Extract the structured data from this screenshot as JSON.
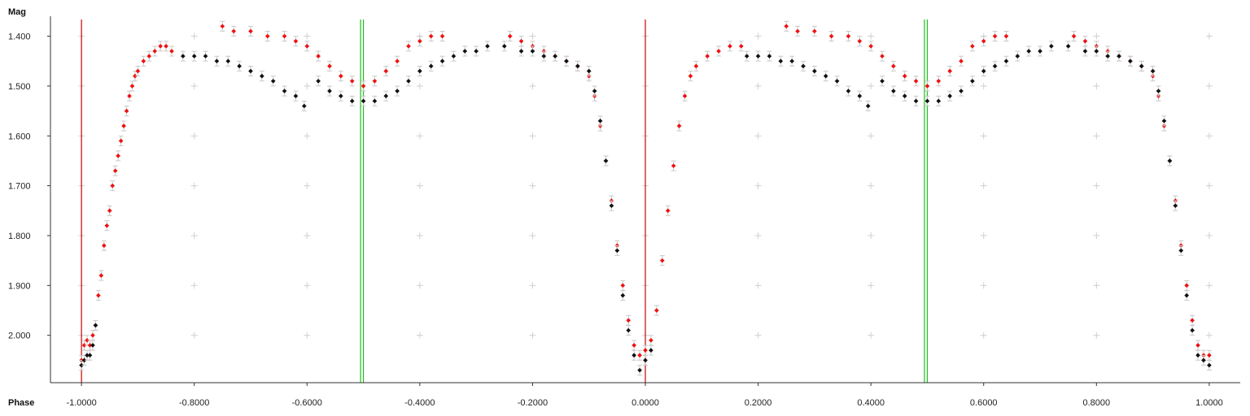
{
  "chart_data": {
    "type": "scatter",
    "title": "",
    "xlabel": "Phase",
    "ylabel": "Mag",
    "xlim": [
      -1.055,
      1.055
    ],
    "ylim": [
      2.095,
      1.36
    ],
    "y_inverted": true,
    "x_ticks": [
      -1.0,
      -0.8,
      -0.6,
      -0.4,
      -0.2,
      0.0,
      0.2,
      0.4,
      0.6,
      0.8,
      1.0
    ],
    "x_tick_labels": [
      "-1.0000",
      "-0.8000",
      "-0.6000",
      "-0.4000",
      "-0.2000",
      "0.0000",
      "0.2000",
      "0.4000",
      "0.6000",
      "0.8000",
      "1.0000"
    ],
    "y_ticks": [
      1.4,
      1.5,
      1.6,
      1.7,
      1.8,
      1.9,
      2.0
    ],
    "y_tick_labels": [
      "1.400",
      "1.500",
      "1.600",
      "1.700",
      "1.800",
      "1.900",
      "2.000"
    ],
    "grid": "plus-markers",
    "vertical_lines": [
      {
        "x": -1.0,
        "color": "#cc0000"
      },
      {
        "x": 0.0,
        "color": "#cc0000"
      },
      {
        "x": -0.505,
        "color": "#22bb22"
      },
      {
        "x": -0.5,
        "color": "#22bb22"
      },
      {
        "x": 0.495,
        "color": "#22bb22"
      },
      {
        "x": 0.5,
        "color": "#22bb22"
      }
    ],
    "series": [
      {
        "color": "#ee1111",
        "points": [
          [
            -1.0,
            2.05
          ],
          [
            -0.995,
            2.02
          ],
          [
            -0.99,
            2.01
          ],
          [
            -0.985,
            2.02
          ],
          [
            -0.98,
            2.0
          ],
          [
            -0.975,
            1.98
          ],
          [
            -0.97,
            1.92
          ],
          [
            -0.965,
            1.88
          ],
          [
            -0.96,
            1.82
          ],
          [
            -0.955,
            1.78
          ],
          [
            -0.95,
            1.75
          ],
          [
            -0.945,
            1.7
          ],
          [
            -0.94,
            1.67
          ],
          [
            -0.935,
            1.64
          ],
          [
            -0.93,
            1.61
          ],
          [
            -0.925,
            1.58
          ],
          [
            -0.92,
            1.55
          ],
          [
            -0.915,
            1.52
          ],
          [
            -0.91,
            1.5
          ],
          [
            -0.905,
            1.48
          ],
          [
            -0.9,
            1.47
          ],
          [
            -0.89,
            1.45
          ],
          [
            -0.88,
            1.44
          ],
          [
            -0.87,
            1.43
          ],
          [
            -0.86,
            1.42
          ],
          [
            -0.85,
            1.42
          ],
          [
            -0.84,
            1.43
          ],
          [
            -0.75,
            1.38
          ],
          [
            -0.73,
            1.39
          ],
          [
            -0.7,
            1.39
          ],
          [
            -0.67,
            1.4
          ],
          [
            -0.64,
            1.4
          ],
          [
            -0.62,
            1.41
          ],
          [
            -0.6,
            1.42
          ],
          [
            -0.58,
            1.44
          ],
          [
            -0.56,
            1.46
          ],
          [
            -0.54,
            1.48
          ],
          [
            -0.52,
            1.49
          ],
          [
            -0.5,
            1.5
          ],
          [
            -0.48,
            1.49
          ],
          [
            -0.46,
            1.47
          ],
          [
            -0.44,
            1.45
          ],
          [
            -0.42,
            1.42
          ],
          [
            -0.4,
            1.41
          ],
          [
            -0.38,
            1.4
          ],
          [
            -0.36,
            1.4
          ],
          [
            -0.24,
            1.4
          ],
          [
            -0.22,
            1.41
          ],
          [
            -0.2,
            1.42
          ],
          [
            -0.18,
            1.43
          ],
          [
            -0.16,
            1.44
          ],
          [
            -0.14,
            1.45
          ],
          [
            -0.12,
            1.46
          ],
          [
            -0.1,
            1.48
          ],
          [
            -0.09,
            1.52
          ],
          [
            -0.08,
            1.58
          ],
          [
            -0.07,
            1.65
          ],
          [
            -0.06,
            1.73
          ],
          [
            -0.05,
            1.82
          ],
          [
            -0.04,
            1.9
          ],
          [
            -0.03,
            1.97
          ],
          [
            -0.02,
            2.02
          ],
          [
            -0.01,
            2.04
          ],
          [
            0.0,
            2.03
          ],
          [
            0.01,
            2.01
          ],
          [
            0.02,
            1.95
          ],
          [
            0.03,
            1.85
          ],
          [
            0.04,
            1.75
          ],
          [
            0.05,
            1.66
          ],
          [
            0.06,
            1.58
          ],
          [
            0.07,
            1.52
          ],
          [
            0.08,
            1.48
          ],
          [
            0.09,
            1.46
          ],
          [
            0.11,
            1.44
          ],
          [
            0.13,
            1.43
          ],
          [
            0.15,
            1.42
          ],
          [
            0.17,
            1.42
          ],
          [
            0.25,
            1.38
          ],
          [
            0.27,
            1.39
          ],
          [
            0.3,
            1.39
          ],
          [
            0.33,
            1.4
          ],
          [
            0.36,
            1.4
          ],
          [
            0.38,
            1.41
          ],
          [
            0.4,
            1.42
          ],
          [
            0.42,
            1.44
          ],
          [
            0.44,
            1.46
          ],
          [
            0.46,
            1.48
          ],
          [
            0.48,
            1.49
          ],
          [
            0.5,
            1.5
          ],
          [
            0.52,
            1.49
          ],
          [
            0.54,
            1.47
          ],
          [
            0.56,
            1.45
          ],
          [
            0.58,
            1.42
          ],
          [
            0.6,
            1.41
          ],
          [
            0.62,
            1.4
          ],
          [
            0.64,
            1.4
          ],
          [
            0.76,
            1.4
          ],
          [
            0.78,
            1.41
          ],
          [
            0.8,
            1.42
          ],
          [
            0.82,
            1.43
          ],
          [
            0.84,
            1.44
          ],
          [
            0.86,
            1.45
          ],
          [
            0.88,
            1.46
          ],
          [
            0.9,
            1.48
          ],
          [
            0.91,
            1.52
          ],
          [
            0.92,
            1.58
          ],
          [
            0.93,
            1.65
          ],
          [
            0.94,
            1.73
          ],
          [
            0.95,
            1.82
          ],
          [
            0.96,
            1.9
          ],
          [
            0.97,
            1.97
          ],
          [
            0.98,
            2.02
          ],
          [
            0.99,
            2.04
          ],
          [
            1.0,
            2.04
          ]
        ]
      },
      {
        "color": "#111111",
        "points": [
          [
            -1.0,
            2.06
          ],
          [
            -0.995,
            2.05
          ],
          [
            -0.99,
            2.04
          ],
          [
            -0.985,
            2.04
          ],
          [
            -0.98,
            2.02
          ],
          [
            -0.975,
            1.98
          ],
          [
            -0.82,
            1.44
          ],
          [
            -0.8,
            1.44
          ],
          [
            -0.78,
            1.44
          ],
          [
            -0.76,
            1.45
          ],
          [
            -0.74,
            1.45
          ],
          [
            -0.72,
            1.46
          ],
          [
            -0.7,
            1.47
          ],
          [
            -0.68,
            1.48
          ],
          [
            -0.66,
            1.49
          ],
          [
            -0.64,
            1.51
          ],
          [
            -0.62,
            1.52
          ],
          [
            -0.605,
            1.54
          ],
          [
            -0.58,
            1.49
          ],
          [
            -0.56,
            1.51
          ],
          [
            -0.54,
            1.52
          ],
          [
            -0.52,
            1.53
          ],
          [
            -0.5,
            1.53
          ],
          [
            -0.48,
            1.53
          ],
          [
            -0.46,
            1.52
          ],
          [
            -0.44,
            1.51
          ],
          [
            -0.42,
            1.49
          ],
          [
            -0.4,
            1.47
          ],
          [
            -0.38,
            1.46
          ],
          [
            -0.36,
            1.45
          ],
          [
            -0.34,
            1.44
          ],
          [
            -0.32,
            1.43
          ],
          [
            -0.3,
            1.43
          ],
          [
            -0.28,
            1.42
          ],
          [
            -0.25,
            1.42
          ],
          [
            -0.22,
            1.43
          ],
          [
            -0.2,
            1.43
          ],
          [
            -0.18,
            1.44
          ],
          [
            -0.16,
            1.44
          ],
          [
            -0.14,
            1.45
          ],
          [
            -0.12,
            1.46
          ],
          [
            -0.1,
            1.47
          ],
          [
            -0.09,
            1.51
          ],
          [
            -0.08,
            1.57
          ],
          [
            -0.07,
            1.65
          ],
          [
            -0.06,
            1.74
          ],
          [
            -0.05,
            1.83
          ],
          [
            -0.04,
            1.92
          ],
          [
            -0.03,
            1.99
          ],
          [
            -0.02,
            2.04
          ],
          [
            -0.01,
            2.07
          ],
          [
            0.0,
            2.05
          ],
          [
            0.01,
            2.03
          ],
          [
            0.18,
            1.44
          ],
          [
            0.2,
            1.44
          ],
          [
            0.22,
            1.44
          ],
          [
            0.24,
            1.45
          ],
          [
            0.26,
            1.45
          ],
          [
            0.28,
            1.46
          ],
          [
            0.3,
            1.47
          ],
          [
            0.32,
            1.48
          ],
          [
            0.34,
            1.49
          ],
          [
            0.36,
            1.51
          ],
          [
            0.38,
            1.52
          ],
          [
            0.395,
            1.54
          ],
          [
            0.42,
            1.49
          ],
          [
            0.44,
            1.51
          ],
          [
            0.46,
            1.52
          ],
          [
            0.48,
            1.53
          ],
          [
            0.5,
            1.53
          ],
          [
            0.52,
            1.53
          ],
          [
            0.54,
            1.52
          ],
          [
            0.56,
            1.51
          ],
          [
            0.58,
            1.49
          ],
          [
            0.6,
            1.47
          ],
          [
            0.62,
            1.46
          ],
          [
            0.64,
            1.45
          ],
          [
            0.66,
            1.44
          ],
          [
            0.68,
            1.43
          ],
          [
            0.7,
            1.43
          ],
          [
            0.72,
            1.42
          ],
          [
            0.75,
            1.42
          ],
          [
            0.78,
            1.43
          ],
          [
            0.8,
            1.43
          ],
          [
            0.82,
            1.44
          ],
          [
            0.84,
            1.44
          ],
          [
            0.86,
            1.45
          ],
          [
            0.88,
            1.46
          ],
          [
            0.9,
            1.47
          ],
          [
            0.91,
            1.51
          ],
          [
            0.92,
            1.57
          ],
          [
            0.93,
            1.65
          ],
          [
            0.94,
            1.74
          ],
          [
            0.95,
            1.83
          ],
          [
            0.96,
            1.92
          ],
          [
            0.97,
            1.99
          ],
          [
            0.98,
            2.04
          ],
          [
            0.99,
            2.05
          ],
          [
            1.0,
            2.06
          ]
        ]
      }
    ]
  }
}
